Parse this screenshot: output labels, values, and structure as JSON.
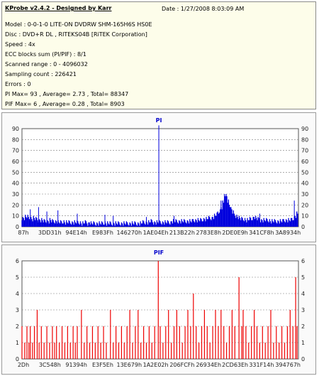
{
  "header": {
    "title": "KProbe v2.4.2 - Designed by Karr",
    "date": "Date : 1/27/2008 8:03:09 AM",
    "lines": [
      "Model : 0-0-1-0 LITE-ON DVDRW SHM-165H6S HS0E",
      "Disc : DVD+R DL , RITEKS04B [RiTEK Corporation]",
      "Speed : 4x",
      "ECC blocks sum (PI/PIF) : 8/1",
      "Scanned range : 0 - 4096032",
      "Sampling count : 226421",
      "Errors : 0",
      "PI Max= 93 , Average= 2.73 , Total= 88347",
      "PIF Max= 6 , Average= 0.28 , Total= 8903"
    ]
  },
  "chart_data": [
    {
      "type": "bar",
      "title": "PI",
      "ylim": [
        0,
        90
      ],
      "yticks": [
        0,
        10,
        20,
        30,
        40,
        50,
        60,
        70,
        80,
        90
      ],
      "xticks": [
        "87h",
        "3DD31h",
        "94E14h",
        "E983Fh",
        "146270h",
        "1AE04Eh",
        "213B22h",
        "2783E8h",
        "2DE0E9h",
        "341CF8h",
        "3A8934h"
      ],
      "grid": true,
      "color": "#0000dd",
      "baseline": [
        8,
        8,
        9,
        9,
        8,
        8,
        7,
        8,
        7,
        7,
        6,
        6,
        6,
        5,
        5,
        5,
        5,
        6,
        5,
        5,
        5,
        5,
        4,
        4,
        4,
        5,
        4,
        4,
        4,
        4,
        4,
        4,
        4,
        4,
        4,
        4,
        3,
        3,
        4,
        4,
        3,
        4,
        3,
        3,
        3,
        3,
        3,
        3,
        3,
        3,
        4,
        3,
        3,
        3,
        3,
        3,
        3,
        3,
        3,
        3,
        3,
        3,
        3,
        3,
        3,
        3,
        3,
        3,
        3,
        3,
        3,
        3,
        3,
        4,
        4,
        4,
        4,
        4,
        5,
        5,
        4,
        4,
        4,
        4,
        4,
        4,
        4,
        4,
        4,
        4,
        4,
        5,
        5,
        5,
        5,
        5,
        5,
        5,
        5,
        5,
        5,
        5,
        5,
        5,
        6,
        6,
        6,
        6,
        6,
        6,
        7,
        7,
        7,
        8,
        8,
        8,
        9,
        10,
        11,
        13,
        15,
        18,
        22,
        26,
        29,
        24,
        20,
        16,
        13,
        11,
        10,
        9,
        8,
        7,
        7,
        7,
        6,
        6,
        7,
        7,
        8,
        9,
        8,
        7,
        7,
        6,
        6,
        6,
        6,
        6,
        6,
        5,
        5,
        5,
        5,
        5,
        5,
        5,
        5,
        6,
        6,
        6,
        6,
        6,
        7,
        8,
        10,
        12
      ],
      "spikes": [
        {
          "x": 0.03,
          "y": 16
        },
        {
          "x": 0.06,
          "y": 18
        },
        {
          "x": 0.09,
          "y": 14
        },
        {
          "x": 0.13,
          "y": 15
        },
        {
          "x": 0.2,
          "y": 12
        },
        {
          "x": 0.3,
          "y": 11
        },
        {
          "x": 0.33,
          "y": 10
        },
        {
          "x": 0.45,
          "y": 9
        },
        {
          "x": 0.495,
          "y": 93
        },
        {
          "x": 0.55,
          "y": 10
        },
        {
          "x": 0.72,
          "y": 24
        },
        {
          "x": 0.732,
          "y": 30
        },
        {
          "x": 0.75,
          "y": 20
        },
        {
          "x": 0.86,
          "y": 12
        },
        {
          "x": 0.985,
          "y": 24
        }
      ]
    },
    {
      "type": "bar",
      "title": "PIF",
      "ylim": [
        0,
        6
      ],
      "yticks": [
        0,
        1,
        2,
        3,
        4,
        5,
        6
      ],
      "xticks": [
        "2Dh",
        "3C548h",
        "91394h",
        "E3F5Eh",
        "13E679h",
        "1A2E02h",
        "206FCFh",
        "26934Eh",
        "2CD63Eh",
        "331F14h",
        "394767h"
      ],
      "grid": true,
      "color": "#ee0000",
      "bars": [
        {
          "x": 0.0,
          "y": 2
        },
        {
          "x": 0.01,
          "y": 1
        },
        {
          "x": 0.018,
          "y": 2
        },
        {
          "x": 0.025,
          "y": 1
        },
        {
          "x": 0.03,
          "y": 2
        },
        {
          "x": 0.038,
          "y": 1
        },
        {
          "x": 0.045,
          "y": 2
        },
        {
          "x": 0.055,
          "y": 3
        },
        {
          "x": 0.062,
          "y": 1
        },
        {
          "x": 0.07,
          "y": 2
        },
        {
          "x": 0.08,
          "y": 1
        },
        {
          "x": 0.09,
          "y": 2
        },
        {
          "x": 0.1,
          "y": 1
        },
        {
          "x": 0.11,
          "y": 2
        },
        {
          "x": 0.118,
          "y": 1
        },
        {
          "x": 0.125,
          "y": 2
        },
        {
          "x": 0.135,
          "y": 1
        },
        {
          "x": 0.145,
          "y": 2
        },
        {
          "x": 0.155,
          "y": 1
        },
        {
          "x": 0.165,
          "y": 2
        },
        {
          "x": 0.175,
          "y": 1
        },
        {
          "x": 0.185,
          "y": 2
        },
        {
          "x": 0.193,
          "y": 1
        },
        {
          "x": 0.2,
          "y": 2
        },
        {
          "x": 0.215,
          "y": 3
        },
        {
          "x": 0.225,
          "y": 1
        },
        {
          "x": 0.235,
          "y": 2
        },
        {
          "x": 0.245,
          "y": 1
        },
        {
          "x": 0.255,
          "y": 2
        },
        {
          "x": 0.265,
          "y": 1
        },
        {
          "x": 0.275,
          "y": 2
        },
        {
          "x": 0.285,
          "y": 1
        },
        {
          "x": 0.295,
          "y": 2
        },
        {
          "x": 0.305,
          "y": 1
        },
        {
          "x": 0.32,
          "y": 3
        },
        {
          "x": 0.33,
          "y": 1
        },
        {
          "x": 0.34,
          "y": 2
        },
        {
          "x": 0.35,
          "y": 1
        },
        {
          "x": 0.36,
          "y": 2
        },
        {
          "x": 0.37,
          "y": 1
        },
        {
          "x": 0.38,
          "y": 2
        },
        {
          "x": 0.39,
          "y": 3
        },
        {
          "x": 0.4,
          "y": 1
        },
        {
          "x": 0.41,
          "y": 2
        },
        {
          "x": 0.42,
          "y": 3
        },
        {
          "x": 0.43,
          "y": 1
        },
        {
          "x": 0.44,
          "y": 2
        },
        {
          "x": 0.45,
          "y": 1
        },
        {
          "x": 0.46,
          "y": 2
        },
        {
          "x": 0.47,
          "y": 1
        },
        {
          "x": 0.48,
          "y": 2
        },
        {
          "x": 0.493,
          "y": 6
        },
        {
          "x": 0.5,
          "y": 2
        },
        {
          "x": 0.51,
          "y": 1
        },
        {
          "x": 0.52,
          "y": 2
        },
        {
          "x": 0.53,
          "y": 3
        },
        {
          "x": 0.54,
          "y": 1
        },
        {
          "x": 0.55,
          "y": 2
        },
        {
          "x": 0.56,
          "y": 3
        },
        {
          "x": 0.57,
          "y": 2
        },
        {
          "x": 0.58,
          "y": 1
        },
        {
          "x": 0.59,
          "y": 2
        },
        {
          "x": 0.6,
          "y": 3
        },
        {
          "x": 0.61,
          "y": 2
        },
        {
          "x": 0.62,
          "y": 4
        },
        {
          "x": 0.63,
          "y": 2
        },
        {
          "x": 0.64,
          "y": 1
        },
        {
          "x": 0.65,
          "y": 2
        },
        {
          "x": 0.66,
          "y": 3
        },
        {
          "x": 0.67,
          "y": 2
        },
        {
          "x": 0.68,
          "y": 1
        },
        {
          "x": 0.69,
          "y": 2
        },
        {
          "x": 0.7,
          "y": 3
        },
        {
          "x": 0.71,
          "y": 2
        },
        {
          "x": 0.72,
          "y": 3
        },
        {
          "x": 0.73,
          "y": 2
        },
        {
          "x": 0.74,
          "y": 1
        },
        {
          "x": 0.75,
          "y": 2
        },
        {
          "x": 0.76,
          "y": 3
        },
        {
          "x": 0.77,
          "y": 2
        },
        {
          "x": 0.785,
          "y": 5
        },
        {
          "x": 0.795,
          "y": 2
        },
        {
          "x": 0.8,
          "y": 3
        },
        {
          "x": 0.81,
          "y": 2
        },
        {
          "x": 0.82,
          "y": 1
        },
        {
          "x": 0.83,
          "y": 2
        },
        {
          "x": 0.84,
          "y": 3
        },
        {
          "x": 0.85,
          "y": 2
        },
        {
          "x": 0.86,
          "y": 1
        },
        {
          "x": 0.87,
          "y": 2
        },
        {
          "x": 0.88,
          "y": 1
        },
        {
          "x": 0.89,
          "y": 2
        },
        {
          "x": 0.9,
          "y": 3
        },
        {
          "x": 0.91,
          "y": 1
        },
        {
          "x": 0.92,
          "y": 2
        },
        {
          "x": 0.93,
          "y": 1
        },
        {
          "x": 0.94,
          "y": 2
        },
        {
          "x": 0.95,
          "y": 1
        },
        {
          "x": 0.96,
          "y": 2
        },
        {
          "x": 0.97,
          "y": 3
        },
        {
          "x": 0.98,
          "y": 2
        },
        {
          "x": 0.99,
          "y": 5
        },
        {
          "x": 0.995,
          "y": 2
        }
      ]
    }
  ]
}
